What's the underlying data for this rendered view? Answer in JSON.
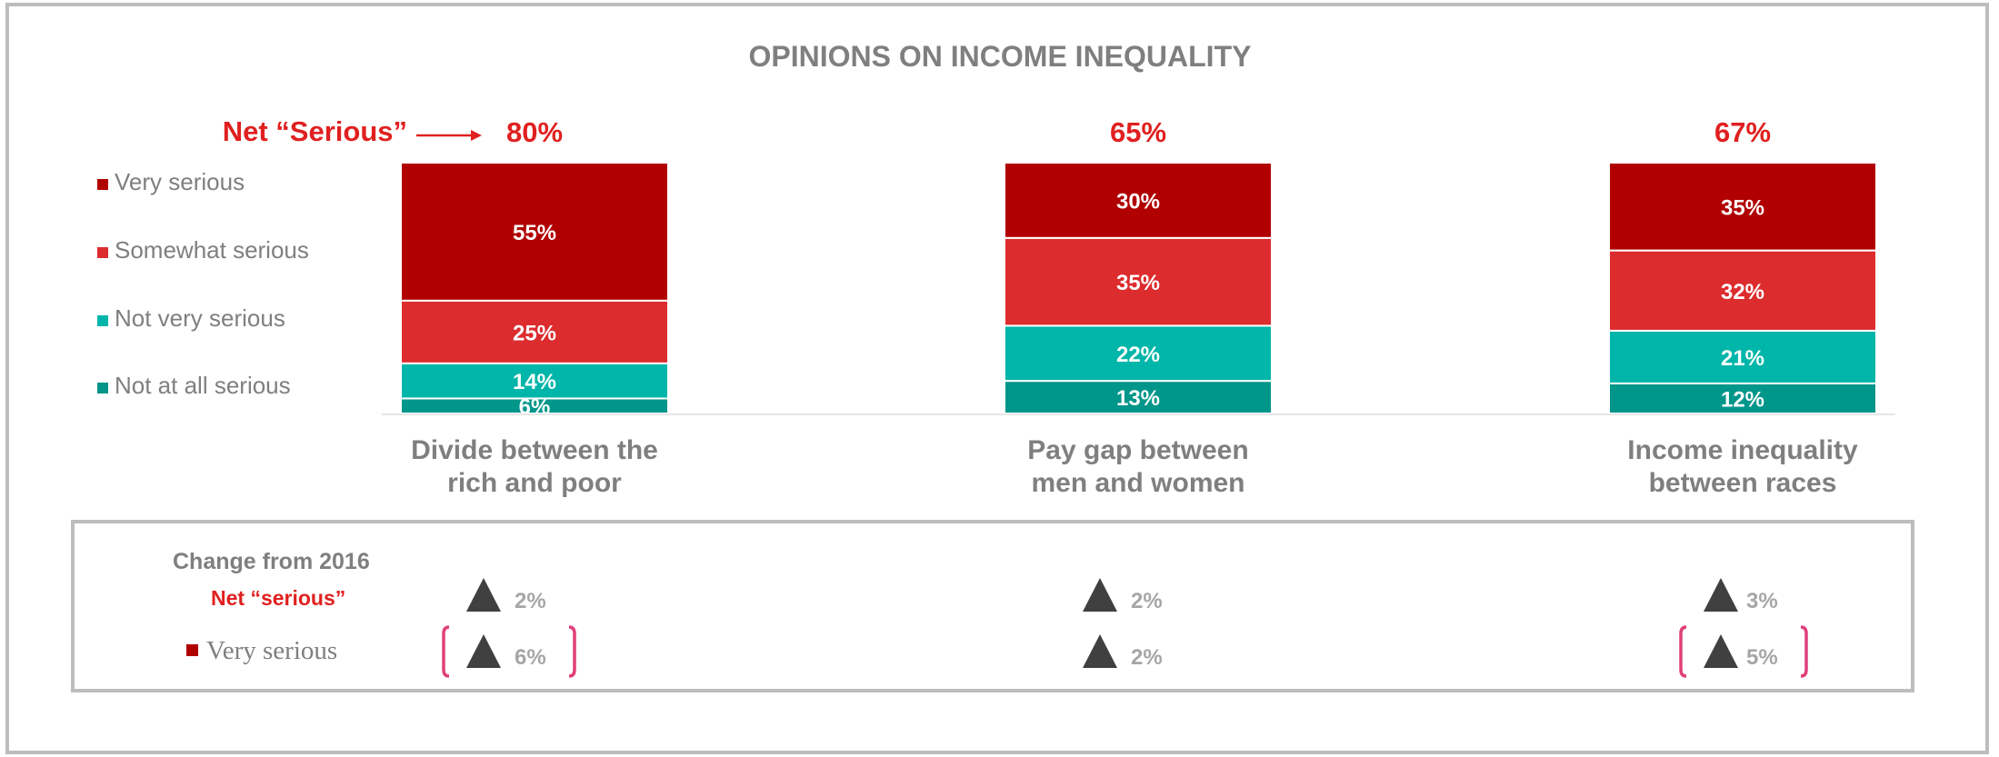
{
  "chart_data": {
    "type": "bar",
    "stacked": true,
    "title": "OPINIONS ON INCOME INEQUALITY",
    "categories": [
      "Divide between the rich and poor",
      "Pay gap between men and women",
      "Income inequality between races"
    ],
    "category_lines": [
      [
        "Divide between the",
        "rich and poor"
      ],
      [
        "Pay gap between",
        "men and women"
      ],
      [
        "Income inequality",
        "between races"
      ]
    ],
    "series": [
      {
        "name": "Not at all serious",
        "color": "#00968a",
        "values": [
          6,
          13,
          12
        ],
        "labels": [
          "6%",
          "13%",
          "12%"
        ]
      },
      {
        "name": "Not very serious",
        "color": "#00b5a9",
        "values": [
          14,
          22,
          21
        ],
        "labels": [
          "14%",
          "22%",
          "21%"
        ]
      },
      {
        "name": "Somewhat serious",
        "color": "#dc2c2e",
        "values": [
          25,
          35,
          32
        ],
        "labels": [
          "25%",
          "35%",
          "32%"
        ]
      },
      {
        "name": "Very serious",
        "color": "#b10000",
        "values": [
          55,
          30,
          35
        ],
        "labels": [
          "55%",
          "30%",
          "35%"
        ]
      }
    ],
    "legend_order": [
      "Very serious",
      "Somewhat serious",
      "Not very serious",
      "Not at all serious"
    ],
    "legend_position": "left",
    "net_serious": {
      "label": "Net “Serious”",
      "values": [
        "80%",
        "65%",
        "67%"
      ]
    },
    "ylim": [
      0,
      100
    ],
    "grid": false
  },
  "change_panel": {
    "heading": "Change from 2016",
    "net_label": "Net “serious”",
    "very_label": "Very serious",
    "net_values": [
      "2%",
      "2%",
      "3%"
    ],
    "very_values": [
      "6%",
      "2%",
      "5%"
    ],
    "very_highlighted": [
      true,
      false,
      true
    ],
    "direction": "up"
  },
  "colors": {
    "accent_red": "#e02020",
    "bracket": "#e0407a",
    "triangle": "#404040",
    "muted_text": "#7f7f7f"
  }
}
